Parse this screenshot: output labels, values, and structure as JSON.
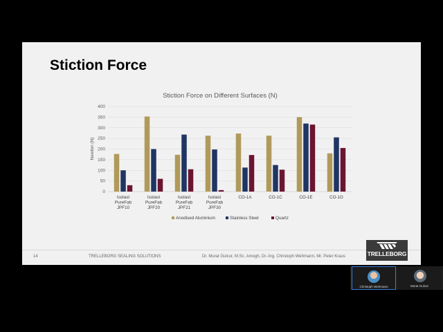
{
  "slide": {
    "title": "Stiction Force",
    "footer": {
      "page_number": "14",
      "company": "TRELLEBORG SEALING SOLUTIONS",
      "authors": "Dr. Murat Gulcur, M.Sc. Amogh, Dr.-Ing. Christoph Wehmann, Mr. Peter Kraus"
    },
    "logo_text": "TRELLEBORG"
  },
  "chart_data": {
    "type": "bar",
    "title": "Stiction Force on Different Surfaces (N)",
    "xlabel": "",
    "ylabel": "Newton (N)",
    "ylim": [
      0,
      400
    ],
    "yticks": [
      0,
      50,
      100,
      150,
      200,
      250,
      300,
      350,
      400
    ],
    "grid": true,
    "legend_position": "bottom",
    "categories": [
      [
        "Isolast",
        "PureFab",
        "JPF10"
      ],
      [
        "Isolast",
        "PureFab",
        "JPF20"
      ],
      [
        "Isolast",
        "PureFab",
        "JPF21"
      ],
      [
        "Isolast",
        "PureFab",
        "JPF30"
      ],
      [
        "CO-1A"
      ],
      [
        "CO-1C"
      ],
      [
        "CO-1E"
      ],
      [
        "CO-1G"
      ]
    ],
    "series": [
      {
        "name": "Anodised Aluminium",
        "color": "#b09a5b",
        "values": [
          177,
          353,
          173,
          263,
          273,
          263,
          350,
          180
        ]
      },
      {
        "name": "Stainless Steel",
        "color": "#1f3564",
        "values": [
          100,
          200,
          268,
          198,
          113,
          125,
          320,
          255
        ]
      },
      {
        "name": "Quartz",
        "color": "#6b1530",
        "values": [
          30,
          60,
          105,
          7,
          172,
          103,
          315,
          205
        ]
      }
    ]
  },
  "participants": [
    {
      "name": "Christoph Wehmann",
      "active": true
    },
    {
      "name": "Murat Gulcur",
      "active": false
    }
  ]
}
